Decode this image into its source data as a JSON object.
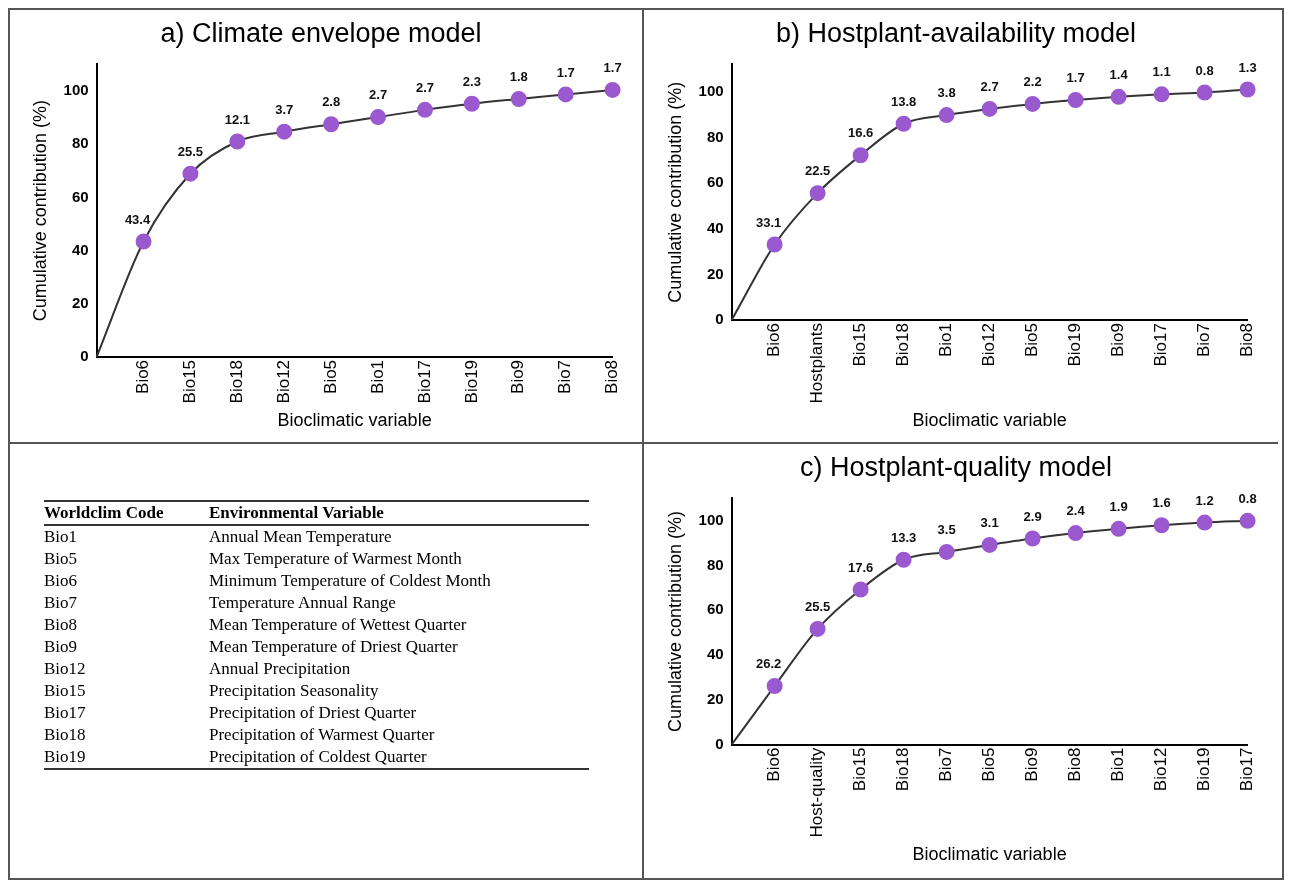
{
  "chart_data": [
    {
      "type": "line",
      "title": "a) Climate envelope model",
      "xlabel": "Bioclimatic variable",
      "ylabel": "Cumulative contribution (%)",
      "categories": [
        null,
        "Bio6",
        "Bio15",
        "Bio18",
        "Bio12",
        "Bio5",
        "Bio1",
        "Bio17",
        "Bio19",
        "Bio9",
        "Bio7",
        "Bio8"
      ],
      "values": [
        0,
        43.4,
        68.9,
        81.0,
        84.7,
        87.5,
        90.2,
        92.9,
        95.2,
        97.0,
        98.7,
        100.4
      ],
      "color": "#9b59d0",
      "marker": "circle",
      "ylim": [
        0,
        110
      ],
      "yticks": [
        0,
        20,
        40,
        60,
        80,
        100
      ],
      "grid": false,
      "legend": false,
      "annotations": [
        {
          "text": "43.4",
          "x": "Bio6",
          "y": 43.4
        },
        {
          "text": "25.5",
          "x": "Bio15",
          "y": 68.9
        },
        {
          "text": "12.1",
          "x": "Bio18",
          "y": 81.0
        },
        {
          "text": "3.7",
          "x": "Bio12",
          "y": 84.7
        },
        {
          "text": "2.8",
          "x": "Bio5",
          "y": 87.5
        },
        {
          "text": "2.7",
          "x": "Bio1",
          "y": 90.2
        },
        {
          "text": "2.7",
          "x": "Bio17",
          "y": 92.9
        },
        {
          "text": "2.3",
          "x": "Bio19",
          "y": 95.2
        },
        {
          "text": "1.8",
          "x": "Bio9",
          "y": 97.0
        },
        {
          "text": "1.7",
          "x": "Bio7",
          "y": 98.7
        },
        {
          "text": "1.7",
          "x": "Bio8",
          "y": 100.4
        }
      ]
    },
    {
      "type": "line",
      "title": "b) Hostplant-availability model",
      "xlabel": "Bioclimatic variable",
      "ylabel": "Cumulative contribution (%)",
      "categories": [
        null,
        "Bio6",
        "Hostplants",
        "Bio15",
        "Bio18",
        "Bio1",
        "Bio12",
        "Bio5",
        "Bio19",
        "Bio9",
        "Bio17",
        "Bio7",
        "Bio8"
      ],
      "values": [
        0,
        33.1,
        55.6,
        72.2,
        86.0,
        89.8,
        92.5,
        94.7,
        96.4,
        97.8,
        98.9,
        99.7,
        101.0
      ],
      "color": "#9b59d0",
      "marker": "circle",
      "ylim": [
        0,
        112
      ],
      "yticks": [
        0,
        20,
        40,
        60,
        80,
        100
      ],
      "grid": false,
      "legend": false,
      "annotations": [
        {
          "text": "33.1",
          "x": "Bio6",
          "y": 33.1
        },
        {
          "text": "22.5",
          "x": "Hostplants",
          "y": 55.6
        },
        {
          "text": "16.6",
          "x": "Bio15",
          "y": 72.2
        },
        {
          "text": "13.8",
          "x": "Bio18",
          "y": 86.0
        },
        {
          "text": "3.8",
          "x": "Bio1",
          "y": 89.8
        },
        {
          "text": "2.7",
          "x": "Bio12",
          "y": 92.5
        },
        {
          "text": "2.2",
          "x": "Bio5",
          "y": 94.7
        },
        {
          "text": "1.7",
          "x": "Bio19",
          "y": 96.4
        },
        {
          "text": "1.4",
          "x": "Bio9",
          "y": 97.8
        },
        {
          "text": "1.1",
          "x": "Bio17",
          "y": 98.9
        },
        {
          "text": "0.8",
          "x": "Bio7",
          "y": 99.7
        },
        {
          "text": "1.3",
          "x": "Bio8",
          "y": 101.0
        }
      ]
    },
    {
      "type": "other",
      "annotations": [
        "Worldclim Code",
        "Environmental Variable",
        "Bio1",
        "Annual Mean Temperature",
        "Bio5",
        "Max Temperature of Warmest Month",
        "Bio6",
        "Minimum Temperature of Coldest Month",
        "Bio7",
        "Temperature Annual Range",
        "Bio8",
        "Mean Temperature of Wettest Quarter",
        "Bio9",
        "Mean Temperature of Driest Quarter",
        "Bio12",
        "Annual Precipitation",
        "Bio15",
        "Precipitation Seasonality",
        "Bio17",
        "Precipitation of Driest Quarter",
        "Bio18",
        "Precipitation of Warmest Quarter",
        "Bio19",
        "Precipitation of Coldest Quarter"
      ]
    },
    {
      "type": "line",
      "title": "c) Hostplant-quality model",
      "xlabel": "Bioclimatic variable",
      "ylabel": "Cumulative contribution (%)",
      "categories": [
        null,
        "Bio6",
        "Host-quality",
        "Bio15",
        "Bio18",
        "Bio7",
        "Bio5",
        "Bio9",
        "Bio8",
        "Bio1",
        "Bio12",
        "Bio19",
        "Bio17"
      ],
      "values": [
        0,
        26.2,
        51.7,
        69.3,
        82.6,
        86.1,
        89.2,
        92.1,
        94.5,
        96.4,
        98.0,
        99.2,
        100.0
      ],
      "color": "#9b59d0",
      "marker": "circle",
      "ylim": [
        0,
        110
      ],
      "yticks": [
        0,
        20,
        40,
        60,
        80,
        100
      ],
      "grid": false,
      "legend": false,
      "annotations": [
        {
          "text": "26.2",
          "x": "Bio6",
          "y": 26.2
        },
        {
          "text": "25.5",
          "x": "Host-quality",
          "y": 51.7
        },
        {
          "text": "17.6",
          "x": "Bio15",
          "y": 69.3
        },
        {
          "text": "13.3",
          "x": "Bio18",
          "y": 82.6
        },
        {
          "text": "3.5",
          "x": "Bio7",
          "y": 86.1
        },
        {
          "text": "3.1",
          "x": "Bio5",
          "y": 89.2
        },
        {
          "text": "2.9",
          "x": "Bio9",
          "y": 92.1
        },
        {
          "text": "2.4",
          "x": "Bio8",
          "y": 94.5
        },
        {
          "text": "1.9",
          "x": "Bio1",
          "y": 96.4
        },
        {
          "text": "1.6",
          "x": "Bio12",
          "y": 98.0
        },
        {
          "text": "1.2",
          "x": "Bio19",
          "y": 99.2
        },
        {
          "text": "0.8",
          "x": "Bio17",
          "y": 100.0
        }
      ]
    }
  ]
}
